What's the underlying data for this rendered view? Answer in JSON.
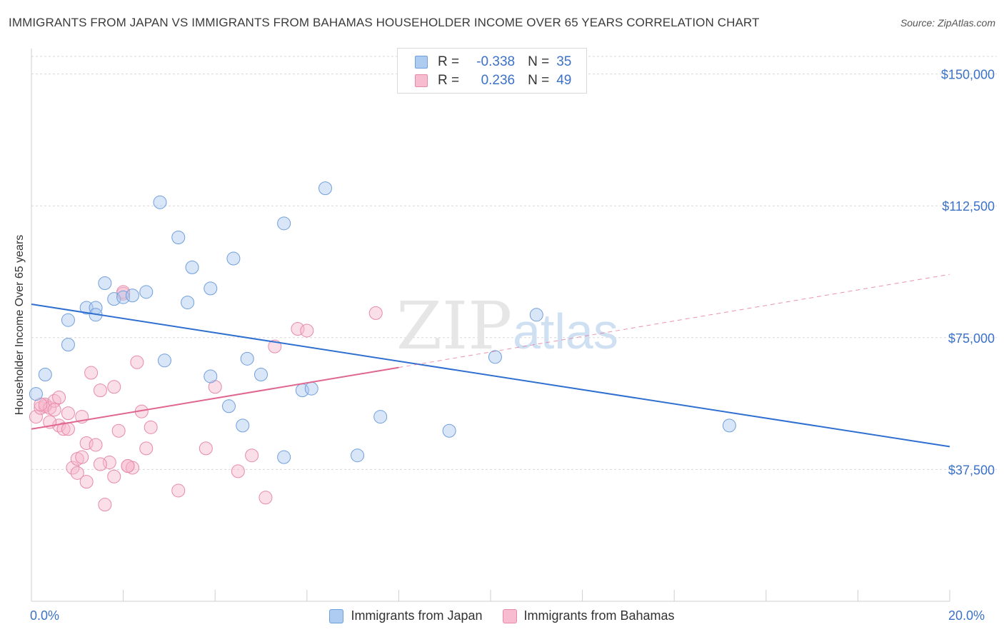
{
  "title": "IMMIGRANTS FROM JAPAN VS IMMIGRANTS FROM BAHAMAS HOUSEHOLDER INCOME OVER 65 YEARS CORRELATION CHART",
  "source": "Source: ZipAtlas.com",
  "watermark": {
    "zip": "ZIP",
    "atlas": "atlas"
  },
  "legend": {
    "r_label": "R =",
    "n_label": "N =",
    "rows": [
      {
        "r": "-0.338",
        "n": "35",
        "color": "#aecbf2",
        "border": "#6f9fdc"
      },
      {
        "r": "0.236",
        "n": "49",
        "color": "#f7bcd0",
        "border": "#e78aa9"
      }
    ]
  },
  "colors": {
    "japan_fill": "rgba(170,200,240,0.45)",
    "japan_stroke": "#6f9fdc",
    "japan_line": "#2f6fd0",
    "bahamas_fill": "rgba(247,185,205,0.45)",
    "bahamas_stroke": "#e78aa9",
    "bahamas_line": "#e06690",
    "grid": "#d8d8d8",
    "axis_label": "#3b72c7"
  },
  "chart_data": {
    "type": "scatter",
    "title": "IMMIGRANTS FROM JAPAN VS IMMIGRANTS FROM BAHAMAS HOUSEHOLDER INCOME OVER 65 YEARS CORRELATION CHART",
    "xlabel": "",
    "ylabel": "Householder Income Over 65 years",
    "xlim": [
      0,
      20
    ],
    "ylim": [
      0,
      155000
    ],
    "x_tick_labels": [
      "0.0%",
      "20.0%"
    ],
    "y_ticks": [
      37500,
      75000,
      112500,
      150000
    ],
    "y_tick_labels": [
      "$37,500",
      "$75,000",
      "$112,500",
      "$150,000"
    ],
    "grid": true,
    "legend_position": "top-center",
    "series": [
      {
        "name": "Immigrants from Japan",
        "points": [
          [
            0.3,
            64500
          ],
          [
            0.8,
            73000
          ],
          [
            0.8,
            80000
          ],
          [
            1.2,
            83500
          ],
          [
            1.4,
            83500
          ],
          [
            1.4,
            81500
          ],
          [
            1.6,
            90500
          ],
          [
            1.8,
            86000
          ],
          [
            2.0,
            86500
          ],
          [
            2.2,
            87000
          ],
          [
            2.5,
            88000
          ],
          [
            2.8,
            113500
          ],
          [
            2.9,
            68500
          ],
          [
            3.2,
            103500
          ],
          [
            3.4,
            85000
          ],
          [
            3.5,
            95000
          ],
          [
            3.9,
            64000
          ],
          [
            3.9,
            89000
          ],
          [
            4.3,
            55500
          ],
          [
            4.4,
            97500
          ],
          [
            4.6,
            50000
          ],
          [
            4.7,
            69000
          ],
          [
            5.0,
            64500
          ],
          [
            5.5,
            107500
          ],
          [
            5.5,
            41000
          ],
          [
            5.9,
            60000
          ],
          [
            6.1,
            60500
          ],
          [
            6.4,
            117500
          ],
          [
            7.1,
            41500
          ],
          [
            7.6,
            52500
          ],
          [
            9.1,
            48500
          ],
          [
            10.1,
            69500
          ],
          [
            11.0,
            81500
          ],
          [
            15.2,
            50000
          ],
          [
            0.1,
            59000
          ]
        ],
        "trend": {
          "x": [
            0,
            20
          ],
          "y": [
            84500,
            44000
          ]
        }
      },
      {
        "name": "Immigrants from Bahamas",
        "points": [
          [
            0.1,
            52500
          ],
          [
            0.2,
            55000
          ],
          [
            0.3,
            55500
          ],
          [
            0.3,
            56000
          ],
          [
            0.4,
            55000
          ],
          [
            0.5,
            57000
          ],
          [
            0.5,
            54500
          ],
          [
            0.6,
            50000
          ],
          [
            0.7,
            49000
          ],
          [
            0.8,
            49000
          ],
          [
            0.9,
            38000
          ],
          [
            1.0,
            40500
          ],
          [
            1.0,
            36500
          ],
          [
            1.1,
            41000
          ],
          [
            1.1,
            52500
          ],
          [
            1.2,
            45000
          ],
          [
            1.3,
            65000
          ],
          [
            1.4,
            44500
          ],
          [
            1.5,
            60000
          ],
          [
            1.6,
            27500
          ],
          [
            1.7,
            39500
          ],
          [
            1.8,
            35500
          ],
          [
            1.8,
            61000
          ],
          [
            1.9,
            48500
          ],
          [
            2.0,
            87500
          ],
          [
            2.1,
            38500
          ],
          [
            2.2,
            38000
          ],
          [
            2.3,
            68000
          ],
          [
            2.4,
            54000
          ],
          [
            2.5,
            43500
          ],
          [
            2.6,
            49500
          ],
          [
            3.2,
            31500
          ],
          [
            3.8,
            43500
          ],
          [
            4.0,
            61000
          ],
          [
            4.5,
            37000
          ],
          [
            4.8,
            41500
          ],
          [
            5.1,
            29500
          ],
          [
            5.3,
            72500
          ],
          [
            5.8,
            77500
          ],
          [
            6.0,
            77000
          ],
          [
            7.5,
            82000
          ],
          [
            2.0,
            88000
          ],
          [
            0.2,
            56000
          ],
          [
            0.4,
            51000
          ],
          [
            0.6,
            58000
          ],
          [
            0.8,
            53500
          ],
          [
            1.5,
            39000
          ],
          [
            1.2,
            34000
          ],
          [
            2.1,
            38500
          ]
        ],
        "trend": {
          "x": [
            0,
            8
          ],
          "y": [
            49000,
            66500
          ]
        },
        "trend_extension": {
          "x": [
            8,
            20
          ],
          "y": [
            66500,
            93000
          ]
        }
      }
    ]
  }
}
